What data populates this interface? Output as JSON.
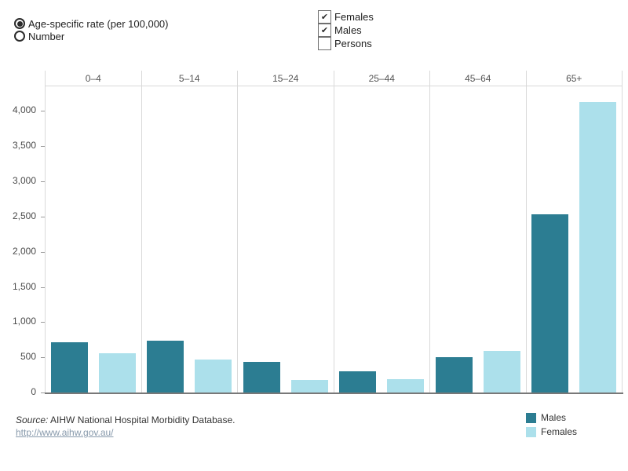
{
  "controls": {
    "radio_group": {
      "options": [
        {
          "label": "Age-specific rate (per 100,000)",
          "selected": true
        },
        {
          "label": "Number",
          "selected": false
        }
      ]
    },
    "checkbox_group": {
      "options": [
        {
          "label": "Females",
          "checked": true
        },
        {
          "label": "Males",
          "checked": true
        },
        {
          "label": "Persons",
          "checked": false
        }
      ]
    }
  },
  "chart_data": {
    "type": "bar",
    "categories": [
      "0–4",
      "5–14",
      "15–24",
      "25–44",
      "45–64",
      "65+"
    ],
    "series": [
      {
        "name": "Males",
        "color": "#2c7d92",
        "values": [
          710,
          740,
          430,
          300,
          505,
          2535
        ]
      },
      {
        "name": "Females",
        "color": "#ace0eb",
        "values": [
          560,
          470,
          175,
          195,
          590,
          4130
        ]
      }
    ],
    "title": "",
    "xlabel": "",
    "ylabel": "Age-specific rate (per 100,000)",
    "ylim": [
      0,
      4350
    ],
    "y_tick_values": [
      0,
      500,
      1000,
      1500,
      2000,
      2500,
      3000,
      3500,
      4000
    ],
    "y_tick_labels": [
      "0",
      "500",
      "1,000",
      "1,500",
      "2,000",
      "2,500",
      "3,000",
      "3,500",
      "4,000"
    ],
    "grid": "vertical-column-separators-only",
    "legend_position": "bottom-right"
  },
  "legend": {
    "items": [
      {
        "label": "Males",
        "color": "#2c7d92"
      },
      {
        "label": "Females",
        "color": "#ace0eb"
      }
    ]
  },
  "footer": {
    "source_prefix": "Source:",
    "source_text": " AIHW National Hospital Morbidity Database.",
    "link": "http://www.aihw.gov.au/"
  }
}
